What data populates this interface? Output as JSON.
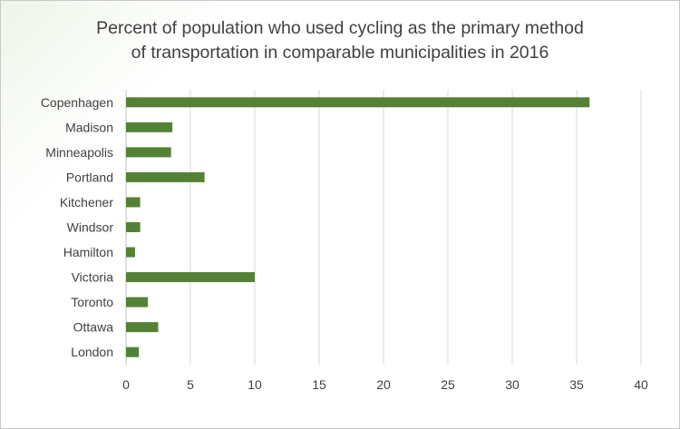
{
  "chart_data": {
    "type": "bar",
    "orientation": "horizontal",
    "title_lines": [
      "Percent of population who used cycling as the primary method",
      "of transportation in comparable municipalities in 2016"
    ],
    "categories": [
      "Copenhagen",
      "Madison",
      "Minneapolis",
      "Portland",
      "Kitchener",
      "Windsor",
      "Hamilton",
      "Victoria",
      "Toronto",
      "Ottawa",
      "London"
    ],
    "values": [
      36,
      3.6,
      3.5,
      6.1,
      1.1,
      1.1,
      0.7,
      10,
      1.7,
      2.5,
      1.0
    ],
    "xlim": [
      0,
      40
    ],
    "xticks": [
      0,
      5,
      10,
      15,
      20,
      25,
      30,
      35,
      40
    ],
    "xlabel": "",
    "ylabel": "",
    "grid": "vertical",
    "legend": "none",
    "bar_color": "#548235",
    "grid_color": "#d9d9d9",
    "axis_color": "#bfbfbf"
  }
}
